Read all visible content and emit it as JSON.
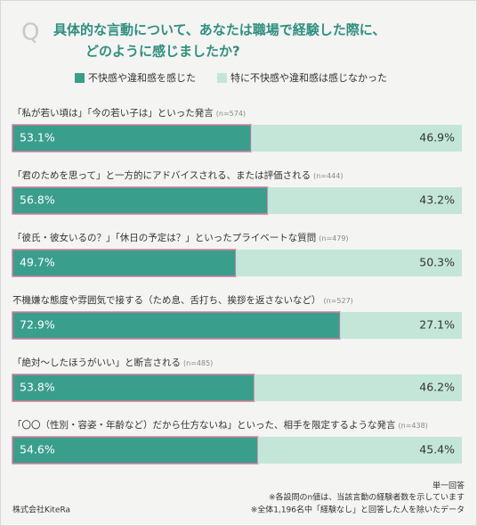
{
  "chart_data": {
    "type": "stacked_bar_100",
    "orientation": "horizontal",
    "title_marker": "Q",
    "title": [
      "具体的な言動について、あなたは職場で経験した際に、",
      "どのように感じましたか?"
    ],
    "categories": [
      "「私が若い頃は」「今の若い子は」といった発言",
      "「君のためを思って」と一方的にアドバイスされる、または評価される",
      "「彼氏・彼女いるの？」「休日の予定は？」といったプライベートな質問",
      "不機嫌な態度や雰囲気で接する（ため息、舌打ち、挨拶を返さないなど）",
      "「絶対～したほうがいい」と断言される",
      "「〇〇（性別・容姿・年齢など）だから仕方ないね」といった、相手を限定するような発言"
    ],
    "category_notes": [
      "(n=574)",
      "(n=444)",
      "(n=479)",
      "(n=527)",
      "(n=485)",
      "(n=438)"
    ],
    "xlim": [
      0,
      100
    ],
    "series": [
      {
        "name": "不快感や違和感を感じた",
        "color": "#3a9e8d",
        "values": [
          53.1,
          56.8,
          49.7,
          72.9,
          53.8,
          54.6
        ],
        "value_labels": [
          "53.1%",
          "56.8%",
          "49.7%",
          "72.9%",
          "53.8%",
          "54.6%"
        ]
      },
      {
        "name": "特に不快感や違和感は感じなかった",
        "color": "#c3e6d9",
        "values": [
          46.9,
          43.2,
          50.3,
          27.1,
          46.2,
          45.4
        ],
        "value_labels": [
          "46.9%",
          "43.2%",
          "50.3%",
          "27.1%",
          "46.2%",
          "45.4%"
        ]
      }
    ],
    "notes": [
      "単一回答",
      "※各設問のn値は、当該言動の経験者数を示しています",
      "※全体1,196名中「経験なし」と回答した人を除いたデータ"
    ],
    "source": "株式会社KiteRa"
  }
}
